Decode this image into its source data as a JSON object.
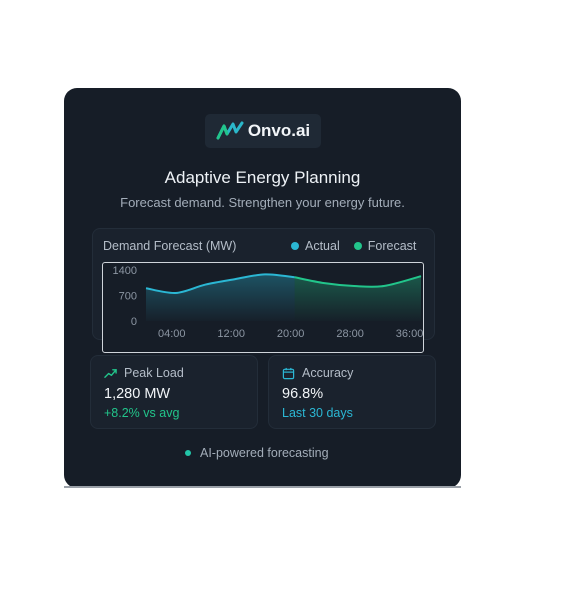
{
  "brand": {
    "name": "Onvo.ai",
    "logo_icon": "wave-logo-icon",
    "color": "#2bb7c9"
  },
  "header": {
    "title": "Adaptive Energy Planning",
    "subtitle": "Forecast demand. Strengthen your energy future."
  },
  "chart": {
    "title": "Demand Forecast (MW)",
    "legend": [
      {
        "label": "Actual",
        "color": "#2bb7d4"
      },
      {
        "label": "Forecast",
        "color": "#22c58b"
      }
    ]
  },
  "chart_data": {
    "type": "area",
    "title": "Demand Forecast (MW)",
    "ylim": [
      0,
      1400
    ],
    "y_ticks": [
      "1400",
      "700",
      "0"
    ],
    "y_tick_values": [
      1400,
      700,
      0
    ],
    "x_ticks": [
      "04:00",
      "12:00",
      "20:00",
      "28:00",
      "36:00"
    ],
    "x_tick_values": [
      4,
      12,
      20,
      28,
      36
    ],
    "xlim": [
      0,
      37
    ],
    "series": [
      {
        "name": "Actual",
        "color": "#2bb7d4",
        "x": [
          0,
          4,
          8,
          12,
          16,
          20
        ],
        "values": [
          900,
          770,
          1000,
          1150,
          1280,
          1200
        ]
      },
      {
        "name": "Forecast",
        "color": "#22c58b",
        "x": [
          20,
          24,
          28,
          32,
          37
        ],
        "values": [
          1200,
          1040,
          960,
          960,
          1230
        ]
      }
    ]
  },
  "stats": [
    {
      "icon": "trending-up-icon",
      "label": "Peak Load",
      "value": "1,280 MW",
      "sub": "+8.2% vs avg",
      "sub_color": "#22c58b",
      "icon_color": "#22c58b"
    },
    {
      "icon": "calendar-icon",
      "label": "Accuracy",
      "value": "96.8%",
      "sub": "Last 30 days",
      "sub_color": "#2bb7d4",
      "icon_color": "#2bb7d4"
    }
  ],
  "footer": {
    "text": "AI-powered forecasting",
    "dot_color": "#22c5a8"
  }
}
